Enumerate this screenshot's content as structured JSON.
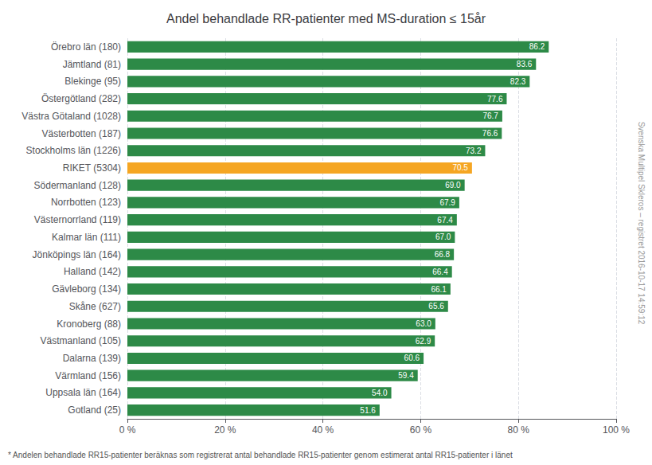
{
  "chart_data": {
    "type": "bar",
    "orientation": "horizontal",
    "title": "Andel behandlade RR-patienter med MS-duration ≤ 15år",
    "categories": [
      "Gotland (25)",
      "Uppsala län (164)",
      "Värmland (156)",
      "Dalarna (139)",
      "Västmanland (105)",
      "Kronoberg (88)",
      "Skåne (627)",
      "Gävleborg (134)",
      "Halland (142)",
      "Jönköpings län (164)",
      "Kalmar län (111)",
      "Västernorrland (119)",
      "Norrbotten (123)",
      "Södermanland (128)",
      "RIKET (5304)",
      "Stockholms län (1226)",
      "Västerbotten (187)",
      "Västra Götaland (1028)",
      "Östergötland (282)",
      "Blekinge (95)",
      "Jämtland (81)",
      "Örebro län (180)"
    ],
    "values": [
      51.6,
      54.0,
      59.4,
      60.6,
      62.9,
      63.0,
      65.6,
      66.1,
      66.4,
      66.8,
      67.0,
      67.4,
      67.9,
      69.0,
      70.5,
      73.2,
      76.6,
      76.7,
      77.6,
      82.3,
      83.6,
      86.2
    ],
    "value_labels": [
      "51.6",
      "54.0",
      "59.4",
      "60.6",
      "62.9",
      "63.0",
      "65.6",
      "66.1",
      "66.4",
      "66.8",
      "67.0",
      "67.4",
      "67.9",
      "69.0",
      "70.5",
      "73.2",
      "76.6",
      "76.7",
      "77.6",
      "82.3",
      "83.6",
      "86.2"
    ],
    "colors": [
      "#2d8a47",
      "#2d8a47",
      "#2d8a47",
      "#2d8a47",
      "#2d8a47",
      "#2d8a47",
      "#2d8a47",
      "#2d8a47",
      "#2d8a47",
      "#2d8a47",
      "#2d8a47",
      "#2d8a47",
      "#2d8a47",
      "#2d8a47",
      "#f5a623",
      "#2d8a47",
      "#2d8a47",
      "#2d8a47",
      "#2d8a47",
      "#2d8a47",
      "#2d8a47",
      "#2d8a47"
    ],
    "xlim": [
      0,
      100
    ],
    "xticks": [
      {
        "value": 0,
        "label": "0 %"
      },
      {
        "value": 20,
        "label": "20 %"
      },
      {
        "value": 40,
        "label": "40 %"
      },
      {
        "value": 60,
        "label": "60 %"
      },
      {
        "value": 80,
        "label": "80 %"
      },
      {
        "value": 100,
        "label": "100 %"
      }
    ],
    "grid": true,
    "data_labels": true,
    "annotations": [
      "* Andelen behandlade RR15-patienter beräknas som registrerat antal behandlade RR15-patienter genom estimerat antal RR15-patienter i länet",
      "Svenska Multipel Skleros – registret 2016-10-17 14:59:12"
    ]
  }
}
